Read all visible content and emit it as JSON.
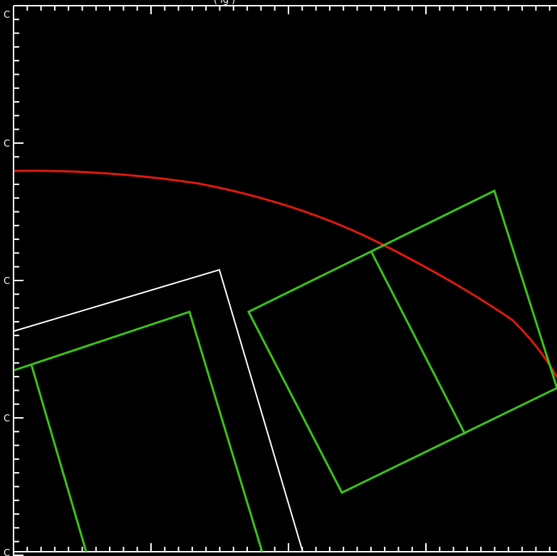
{
  "diagram": {
    "title_fragment": "(         ig                        )",
    "y_tick_labels": [
      "C",
      "C",
      "C",
      "C",
      "C"
    ],
    "colors": {
      "background": "#000000",
      "frame": "#ffffff",
      "arc": "#e0190e",
      "green_shapes": "#3cc31a",
      "white_outline": "#ffffff"
    }
  }
}
